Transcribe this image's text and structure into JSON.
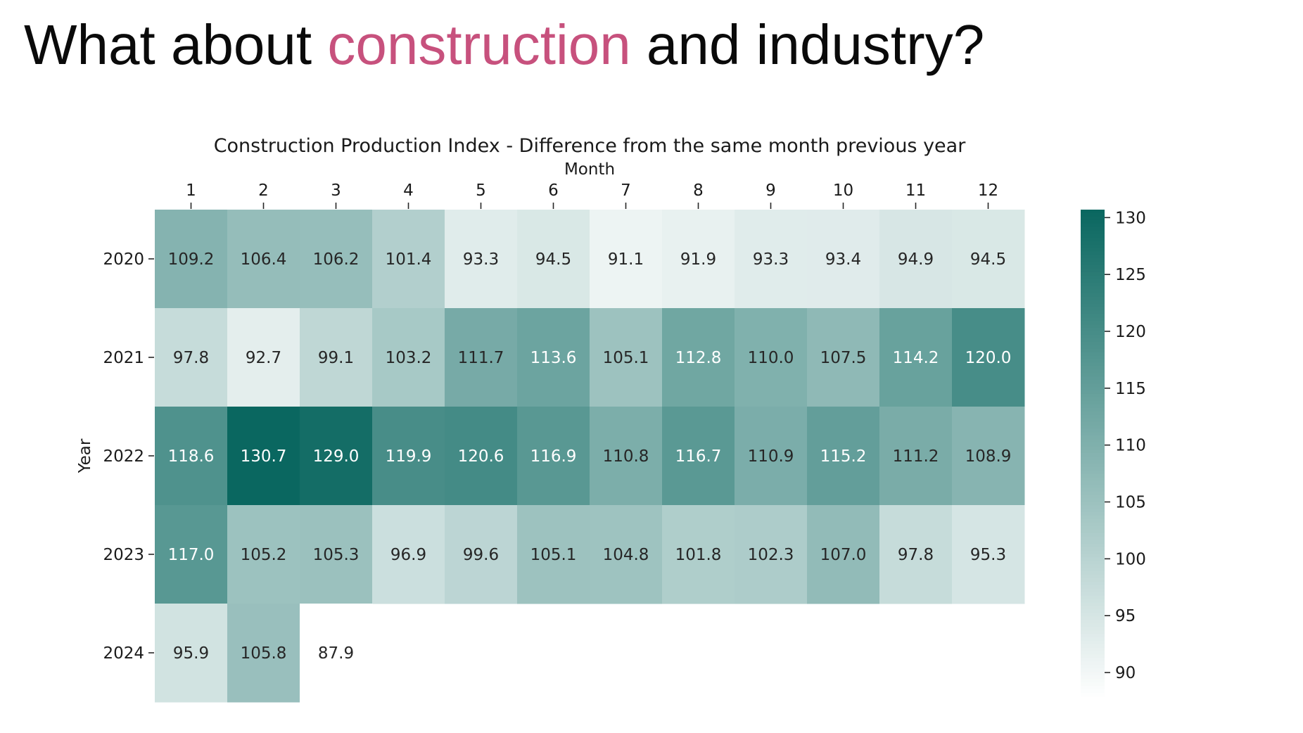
{
  "slide": {
    "title_before": "What about ",
    "title_accent": "construction",
    "title_after": " and industry?",
    "accent_color": "#c7517d"
  },
  "chart_data": {
    "type": "heatmap",
    "title": "Construction Production Index - Difference from the same month previous year",
    "xlabel": "Month",
    "ylabel": "Year",
    "x_categories": [
      "1",
      "2",
      "3",
      "4",
      "5",
      "6",
      "7",
      "8",
      "9",
      "10",
      "11",
      "12"
    ],
    "y_categories": [
      "2020",
      "2021",
      "2022",
      "2023",
      "2024"
    ],
    "values": [
      [
        109.2,
        106.4,
        106.2,
        101.4,
        93.3,
        94.5,
        91.1,
        91.9,
        93.3,
        93.4,
        94.9,
        94.5
      ],
      [
        97.8,
        92.7,
        99.1,
        103.2,
        111.7,
        113.6,
        105.1,
        112.8,
        110.0,
        107.5,
        114.2,
        120.0
      ],
      [
        118.6,
        130.7,
        129.0,
        119.9,
        120.6,
        116.9,
        110.8,
        116.7,
        110.9,
        115.2,
        111.2,
        108.9
      ],
      [
        117.0,
        105.2,
        105.3,
        96.9,
        99.6,
        105.1,
        104.8,
        101.8,
        102.3,
        107.0,
        97.8,
        95.3
      ],
      [
        95.9,
        105.8,
        87.9,
        null,
        null,
        null,
        null,
        null,
        null,
        null,
        null,
        null
      ]
    ],
    "value_format": "0.1",
    "colormap": {
      "low_color": "#ffffff",
      "high_color": "#0a6760",
      "vmin": 87.9,
      "vmax": 130.7
    },
    "colorbar_ticks": [
      90,
      95,
      100,
      105,
      110,
      115,
      120,
      125,
      130
    ],
    "x_axis_position": "top",
    "legend": "colorbar-right",
    "grid": false
  }
}
